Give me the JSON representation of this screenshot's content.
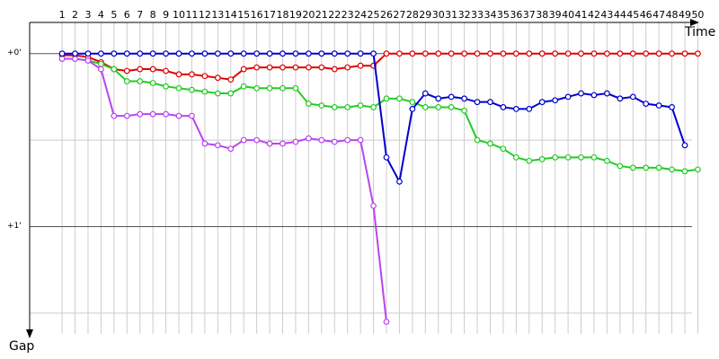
{
  "chart_data": {
    "type": "line",
    "x_label": "Time",
    "y_label": "Gap",
    "x": [
      1,
      2,
      3,
      4,
      5,
      6,
      7,
      8,
      9,
      10,
      11,
      12,
      13,
      14,
      15,
      16,
      17,
      18,
      19,
      20,
      21,
      22,
      23,
      24,
      25,
      26,
      27,
      28,
      29,
      30,
      31,
      32,
      33,
      34,
      35,
      36,
      37,
      38,
      39,
      40,
      41,
      42,
      43,
      44,
      45,
      46,
      47,
      48,
      49,
      50
    ],
    "xlim": [
      -1.5,
      49.9
    ],
    "ylim": [
      -0.18,
      1.62
    ],
    "y_inverted": true,
    "yticks": [
      {
        "value": 0,
        "label": "+0'"
      },
      {
        "value": 1,
        "label": "+1'"
      }
    ],
    "minor_gridlines": [
      0.5,
      1.5
    ],
    "series": [
      {
        "color": "#e00000",
        "values": [
          0.01,
          0.01,
          0.02,
          0.05,
          0.09,
          0.1,
          0.09,
          0.09,
          0.1,
          0.12,
          0.12,
          0.13,
          0.14,
          0.15,
          0.09,
          0.08,
          0.08,
          0.08,
          0.08,
          0.08,
          0.08,
          0.09,
          0.08,
          0.07,
          0.07,
          0,
          0,
          0,
          0,
          0,
          0,
          0,
          0,
          0,
          0,
          0,
          0,
          0,
          0,
          0,
          0,
          0,
          0,
          0,
          0,
          0,
          0,
          0,
          0,
          0
        ]
      },
      {
        "color": "#22cc22",
        "values": [
          0.03,
          0.03,
          0.04,
          0.06,
          0.09,
          0.16,
          0.16,
          0.17,
          0.19,
          0.2,
          0.21,
          0.22,
          0.23,
          0.23,
          0.19,
          0.2,
          0.2,
          0.2,
          0.2,
          0.29,
          0.3,
          0.31,
          0.31,
          0.3,
          0.31,
          0.26,
          0.26,
          0.28,
          0.31,
          0.31,
          0.31,
          0.33,
          0.5,
          0.52,
          0.55,
          0.6,
          0.62,
          0.61,
          0.6,
          0.6,
          0.6,
          0.6,
          0.62,
          0.65,
          0.66,
          0.66,
          0.66,
          0.67,
          0.68,
          0.67
        ]
      },
      {
        "color": "#bb44ee",
        "values": [
          0.03,
          0.03,
          0.04,
          0.09,
          0.36,
          0.36,
          0.35,
          0.35,
          0.35,
          0.36,
          0.36,
          0.52,
          0.53,
          0.55,
          0.5,
          0.5,
          0.52,
          0.52,
          0.51,
          0.49,
          0.5,
          0.51,
          0.5,
          0.5,
          0.88,
          1.55,
          null,
          null,
          null,
          null,
          null,
          null,
          null,
          null,
          null,
          null,
          null,
          null,
          null,
          null,
          null,
          null,
          null,
          null,
          null,
          null,
          null,
          null,
          null,
          null
        ]
      },
      {
        "color": "#0000cc",
        "values": [
          0,
          0,
          0,
          0,
          0,
          0,
          0,
          0,
          0,
          0,
          0,
          0,
          0,
          0,
          0,
          0,
          0,
          0,
          0,
          0,
          0,
          0,
          0,
          0,
          0,
          0.6,
          0.74,
          0.32,
          0.23,
          0.26,
          0.25,
          0.26,
          0.28,
          0.28,
          0.31,
          0.32,
          0.32,
          0.28,
          0.27,
          0.25,
          0.23,
          0.24,
          0.23,
          0.26,
          0.25,
          0.29,
          0.3,
          0.31,
          0.53,
          null
        ]
      }
    ]
  }
}
